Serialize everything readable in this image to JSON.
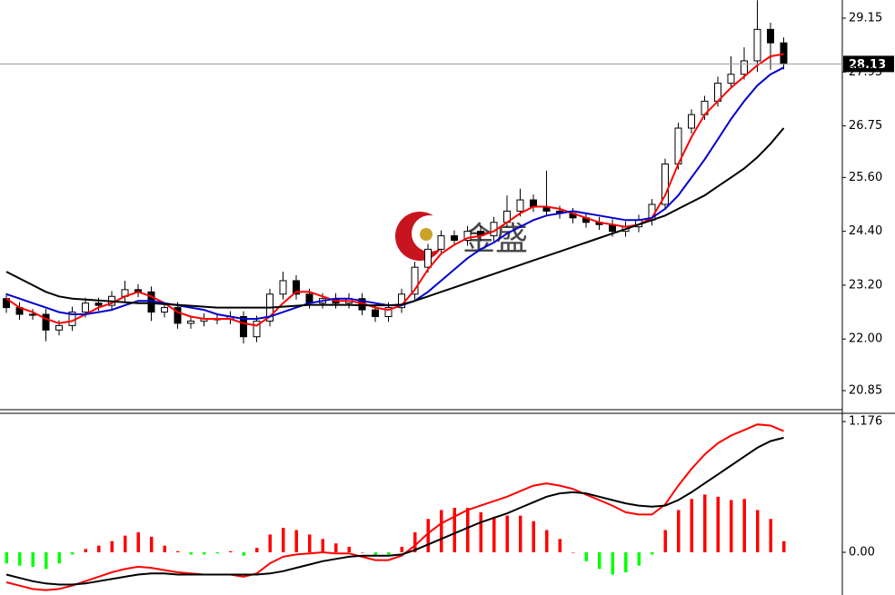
{
  "watermark": "金盛",
  "chart_data": [
    {
      "type": "candlestick",
      "open": [
        22.9,
        22.7,
        22.55,
        22.55,
        22.2,
        22.3,
        22.6,
        22.8,
        22.75,
        22.95,
        23.1,
        23.05,
        22.6,
        22.7,
        22.35,
        22.4,
        22.45,
        22.45,
        22.5,
        22.05,
        22.4,
        23.0,
        23.3,
        23.0,
        22.8,
        22.9,
        22.8,
        22.9,
        22.65,
        22.5,
        22.7,
        23.0,
        23.6,
        24.0,
        24.3,
        24.2,
        24.4,
        24.3,
        24.6,
        24.85,
        25.1,
        24.95,
        24.85,
        24.8,
        24.7,
        24.6,
        24.55,
        24.4,
        24.5,
        24.65,
        25.0,
        25.9,
        26.7,
        27.0,
        27.3,
        27.7,
        27.9,
        28.2,
        28.9,
        28.6
      ],
      "high": [
        23.02,
        22.82,
        22.67,
        22.67,
        22.42,
        22.72,
        22.92,
        22.92,
        23.07,
        23.3,
        23.22,
        23.17,
        22.82,
        22.82,
        22.52,
        22.57,
        22.57,
        22.62,
        22.62,
        22.52,
        23.12,
        23.5,
        23.42,
        23.12,
        23.02,
        23.02,
        23.02,
        23.02,
        22.77,
        22.82,
        23.12,
        23.72,
        24.12,
        24.42,
        24.42,
        24.52,
        24.52,
        24.72,
        25.2,
        25.35,
        25.22,
        25.75,
        24.97,
        24.92,
        24.82,
        24.72,
        24.67,
        24.62,
        24.77,
        25.12,
        26.02,
        26.82,
        27.12,
        27.42,
        27.85,
        28.3,
        28.5,
        29.55,
        29.05,
        28.72
      ],
      "low": [
        22.58,
        22.43,
        22.43,
        21.95,
        22.08,
        22.18,
        22.48,
        22.63,
        22.63,
        22.83,
        22.93,
        22.4,
        22.48,
        22.23,
        22.23,
        22.28,
        22.33,
        22.33,
        21.9,
        21.93,
        22.28,
        22.88,
        22.88,
        22.68,
        22.68,
        22.68,
        22.68,
        22.53,
        22.38,
        22.38,
        22.58,
        22.88,
        23.48,
        23.88,
        24.08,
        24.08,
        24.18,
        24.18,
        24.48,
        24.73,
        24.83,
        24.73,
        24.68,
        24.58,
        24.48,
        24.43,
        24.28,
        24.28,
        24.38,
        24.53,
        24.88,
        25.78,
        26.58,
        26.88,
        27.18,
        27.58,
        27.78,
        27.95,
        28.0,
        28.01
      ],
      "close": [
        22.7,
        22.55,
        22.55,
        22.2,
        22.3,
        22.6,
        22.8,
        22.75,
        22.95,
        23.1,
        23.05,
        22.6,
        22.7,
        22.35,
        22.4,
        22.45,
        22.45,
        22.5,
        22.05,
        22.4,
        23.0,
        23.3,
        23.0,
        22.8,
        22.9,
        22.8,
        22.9,
        22.65,
        22.5,
        22.7,
        23.0,
        23.6,
        24.0,
        24.3,
        24.2,
        24.4,
        24.3,
        24.6,
        24.85,
        25.1,
        24.95,
        24.85,
        24.8,
        24.7,
        24.6,
        24.55,
        24.4,
        24.5,
        24.65,
        25.0,
        25.9,
        26.7,
        27.0,
        27.3,
        27.7,
        27.9,
        28.2,
        28.9,
        28.6,
        28.13
      ],
      "up_color": "#ffffff",
      "down_color": "#000000",
      "series": [
        {
          "color": "#ff0000",
          "values": [
            22.9,
            22.7,
            22.6,
            22.45,
            22.35,
            22.4,
            22.55,
            22.7,
            22.8,
            22.95,
            23.05,
            22.95,
            22.8,
            22.6,
            22.5,
            22.45,
            22.45,
            22.45,
            22.35,
            22.3,
            22.5,
            22.8,
            23.05,
            23.05,
            22.95,
            22.85,
            22.85,
            22.8,
            22.7,
            22.65,
            22.75,
            23.1,
            23.55,
            23.9,
            24.1,
            24.25,
            24.3,
            24.4,
            24.6,
            24.8,
            24.95,
            24.95,
            24.9,
            24.8,
            24.7,
            24.6,
            24.55,
            24.5,
            24.55,
            24.7,
            25.2,
            25.9,
            26.5,
            27.0,
            27.3,
            27.6,
            27.85,
            28.1,
            28.3,
            28.35
          ]
        },
        {
          "color": "#0000cc",
          "values": [
            23.0,
            22.9,
            22.8,
            22.7,
            22.6,
            22.55,
            22.55,
            22.6,
            22.65,
            22.75,
            22.85,
            22.85,
            22.8,
            22.75,
            22.7,
            22.65,
            22.55,
            22.5,
            22.45,
            22.45,
            22.5,
            22.6,
            22.7,
            22.8,
            22.85,
            22.9,
            22.9,
            22.85,
            22.8,
            22.75,
            22.75,
            22.85,
            23.05,
            23.3,
            23.55,
            23.8,
            24.0,
            24.15,
            24.35,
            24.5,
            24.65,
            24.75,
            24.8,
            24.85,
            24.8,
            24.75,
            24.7,
            24.65,
            24.65,
            24.7,
            24.9,
            25.2,
            25.6,
            26.0,
            26.45,
            26.9,
            27.3,
            27.65,
            27.9,
            28.05
          ]
        },
        {
          "color": "#000000",
          "values": [
            23.5,
            23.35,
            23.2,
            23.05,
            22.95,
            22.9,
            22.88,
            22.86,
            22.84,
            22.82,
            22.8,
            22.8,
            22.78,
            22.76,
            22.74,
            22.72,
            22.7,
            22.7,
            22.7,
            22.7,
            22.7,
            22.72,
            22.74,
            22.76,
            22.76,
            22.76,
            22.76,
            22.75,
            22.75,
            22.75,
            22.77,
            22.85,
            22.95,
            23.05,
            23.15,
            23.25,
            23.35,
            23.45,
            23.55,
            23.65,
            23.75,
            23.85,
            23.95,
            24.05,
            24.15,
            24.25,
            24.35,
            24.45,
            24.55,
            24.65,
            24.75,
            24.9,
            25.05,
            25.2,
            25.4,
            25.6,
            25.8,
            26.05,
            26.35,
            26.7
          ]
        }
      ],
      "current_price": 28.13,
      "ylim": [
        20.445,
        29.555
      ],
      "yticks": [
        {
          "value": 20.85,
          "label": "20.85"
        },
        {
          "value": 22,
          "label": "22.00"
        },
        {
          "value": 23.2,
          "label": "23.20"
        },
        {
          "value": 24.4,
          "label": "24.40"
        },
        {
          "value": 25.6,
          "label": "25.60"
        },
        26.75,
        27.95,
        29.15
      ]
    },
    {
      "type": "macd",
      "histogram": [
        -0.1,
        -0.12,
        -0.13,
        -0.15,
        -0.1,
        -0.02,
        0.03,
        0.06,
        0.1,
        0.15,
        0.18,
        0.14,
        0.06,
        0.01,
        -0.02,
        -0.02,
        -0.01,
        0.01,
        -0.03,
        0.04,
        0.16,
        0.22,
        0.2,
        0.16,
        0.12,
        0.08,
        0.05,
        0.0,
        -0.03,
        -0.02,
        0.05,
        0.18,
        0.3,
        0.38,
        0.4,
        0.4,
        0.36,
        0.32,
        0.33,
        0.33,
        0.28,
        0.2,
        0.12,
        0.0,
        -0.08,
        -0.15,
        -0.2,
        -0.18,
        -0.12,
        -0.02,
        0.2,
        0.38,
        0.48,
        0.52,
        0.5,
        0.47,
        0.48,
        0.38,
        0.3,
        0.1
      ],
      "up_color": "#ff0000",
      "down_color": "#00ff00",
      "series": [
        {
          "color": "#ff0000",
          "values": [
            -0.27,
            -0.3,
            -0.33,
            -0.34,
            -0.33,
            -0.3,
            -0.26,
            -0.22,
            -0.18,
            -0.15,
            -0.13,
            -0.14,
            -0.16,
            -0.18,
            -0.19,
            -0.2,
            -0.2,
            -0.2,
            -0.22,
            -0.19,
            -0.1,
            -0.04,
            -0.02,
            -0.01,
            0.0,
            -0.01,
            -0.01,
            -0.04,
            -0.07,
            -0.07,
            -0.03,
            0.06,
            0.17,
            0.26,
            0.32,
            0.38,
            0.42,
            0.46,
            0.5,
            0.55,
            0.6,
            0.62,
            0.6,
            0.57,
            0.52,
            0.47,
            0.42,
            0.36,
            0.34,
            0.34,
            0.43,
            0.6,
            0.75,
            0.88,
            0.98,
            1.05,
            1.1,
            1.15,
            1.14,
            1.09
          ]
        },
        {
          "color": "#000000",
          "values": [
            -0.2,
            -0.23,
            -0.26,
            -0.28,
            -0.29,
            -0.29,
            -0.28,
            -0.26,
            -0.24,
            -0.22,
            -0.2,
            -0.19,
            -0.19,
            -0.2,
            -0.2,
            -0.2,
            -0.2,
            -0.2,
            -0.2,
            -0.2,
            -0.19,
            -0.17,
            -0.14,
            -0.11,
            -0.08,
            -0.06,
            -0.04,
            -0.03,
            -0.03,
            -0.03,
            -0.02,
            0.02,
            0.07,
            0.12,
            0.17,
            0.22,
            0.27,
            0.31,
            0.35,
            0.4,
            0.45,
            0.5,
            0.53,
            0.54,
            0.53,
            0.5,
            0.47,
            0.44,
            0.42,
            0.41,
            0.42,
            0.47,
            0.54,
            0.62,
            0.7,
            0.78,
            0.86,
            0.94,
            1.0,
            1.03
          ]
        }
      ],
      "ylim": [
        -0.384,
        1.25
      ],
      "yticks": [
        {
          "value": 0,
          "label": "0.00"
        },
        1.176
      ]
    }
  ]
}
